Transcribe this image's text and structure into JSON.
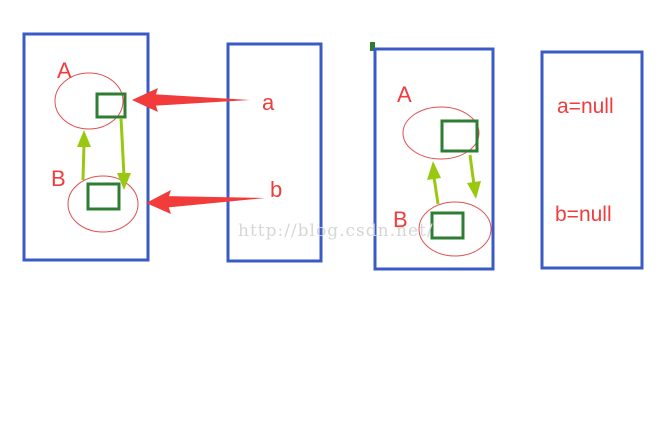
{
  "left_heap": {
    "label_a": "A",
    "label_b": "B"
  },
  "left_stack": {
    "var_a": "a",
    "var_b": "b"
  },
  "right_heap": {
    "label_a": "A",
    "label_b": "B"
  },
  "right_stack": {
    "var_a": "a=null",
    "var_b": "b=null"
  },
  "watermark": "http://blog.csdn.net/",
  "colors": {
    "box_border": "#3a5bc7",
    "object_square": "#2e7d32",
    "circle": "#e05050",
    "red_arrow": "#f23c3c",
    "green_arrow": "#99c811",
    "text": "#f03c3c"
  }
}
